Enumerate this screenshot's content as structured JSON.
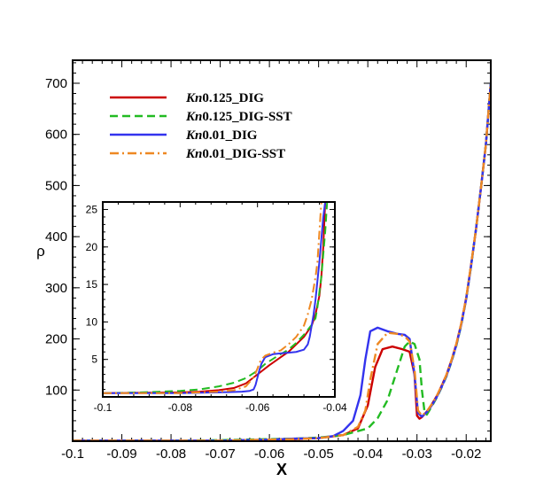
{
  "chart_data": [
    {
      "type": "line",
      "title": "",
      "xlabel": "X",
      "ylabel": "ρ",
      "xlim": [
        -0.1,
        -0.015
      ],
      "ylim": [
        0,
        745
      ],
      "xticks": [
        -0.1,
        -0.09,
        -0.08,
        -0.07,
        -0.06,
        -0.05,
        -0.04,
        -0.03,
        -0.02
      ],
      "xtick_labels": [
        "-0.1",
        "-0.09",
        "-0.08",
        "-0.07",
        "-0.06",
        "-0.05",
        "-0.04",
        "-0.03",
        "-0.02"
      ],
      "yticks": [
        100,
        200,
        300,
        400,
        500,
        600,
        700
      ],
      "ytick_labels": [
        "100",
        "200",
        "300",
        "400",
        "500",
        "600",
        "700"
      ],
      "legend_position": "top-left",
      "series": [
        {
          "name": "Kn0.125_DIG",
          "legend_prefix": "Kn",
          "legend_suffix": "0.125_DIG",
          "color": "#cc0000",
          "dash": "solid",
          "x": [
            -0.1,
            -0.08,
            -0.07,
            -0.065,
            -0.06,
            -0.055,
            -0.05,
            -0.045,
            -0.042,
            -0.04,
            -0.0385,
            -0.037,
            -0.035,
            -0.033,
            -0.0315,
            -0.0305,
            -0.03,
            -0.0295,
            -0.029,
            -0.028,
            -0.027,
            -0.026,
            -0.025,
            -0.024,
            -0.023,
            -0.022,
            -0.021,
            -0.02,
            -0.019,
            -0.018,
            -0.017,
            -0.016,
            -0.0155,
            -0.015
          ],
          "y": [
            1,
            1,
            1,
            2,
            3,
            4,
            6,
            12,
            25,
            70,
            145,
            180,
            185,
            180,
            175,
            130,
            50,
            44,
            47,
            58,
            72,
            88,
            108,
            130,
            158,
            190,
            230,
            280,
            345,
            415,
            495,
            580,
            640,
            700
          ]
        },
        {
          "name": "Kn0.125_DIG-SST",
          "legend_prefix": "Kn",
          "legend_suffix": "0.125_DIG-SST",
          "color": "#22bb22",
          "dash": "dashed",
          "x": [
            -0.1,
            -0.08,
            -0.07,
            -0.065,
            -0.06,
            -0.055,
            -0.05,
            -0.045,
            -0.04,
            -0.038,
            -0.036,
            -0.034,
            -0.0325,
            -0.0315,
            -0.0305,
            -0.0295,
            -0.029,
            -0.0285,
            -0.028,
            -0.027,
            -0.026,
            -0.025,
            -0.024,
            -0.023,
            -0.022,
            -0.021,
            -0.02,
            -0.019,
            -0.018,
            -0.017,
            -0.016,
            -0.0155,
            -0.015
          ],
          "y": [
            1,
            1,
            2,
            3,
            4,
            5,
            7,
            12,
            25,
            45,
            80,
            140,
            185,
            195,
            190,
            160,
            100,
            60,
            52,
            68,
            85,
            105,
            127,
            155,
            187,
            227,
            278,
            343,
            415,
            495,
            580,
            640,
            700
          ]
        },
        {
          "name": "Kn0.01_DIG",
          "legend_prefix": "Kn",
          "legend_suffix": "0.01_DIG",
          "color": "#3333ee",
          "dash": "solid",
          "x": [
            -0.1,
            -0.08,
            -0.07,
            -0.065,
            -0.06,
            -0.055,
            -0.05,
            -0.047,
            -0.045,
            -0.043,
            -0.0415,
            -0.0405,
            -0.0395,
            -0.038,
            -0.036,
            -0.034,
            -0.0325,
            -0.0315,
            -0.0305,
            -0.0298,
            -0.029,
            -0.028,
            -0.027,
            -0.026,
            -0.025,
            -0.024,
            -0.023,
            -0.022,
            -0.021,
            -0.02,
            -0.019,
            -0.018,
            -0.017,
            -0.016,
            -0.0155,
            -0.015
          ],
          "y": [
            1,
            1,
            1,
            2,
            3,
            5,
            6,
            10,
            20,
            40,
            90,
            160,
            215,
            222,
            215,
            210,
            208,
            200,
            130,
            55,
            48,
            57,
            70,
            86,
            106,
            128,
            156,
            188,
            228,
            278,
            343,
            415,
            495,
            580,
            640,
            700
          ]
        },
        {
          "name": "Kn0.01_DIG-SST",
          "legend_prefix": "Kn",
          "legend_suffix": "0.01_DIG-SST",
          "color": "#ee8822",
          "dash": "dashdot",
          "x": [
            -0.1,
            -0.08,
            -0.07,
            -0.065,
            -0.06,
            -0.055,
            -0.05,
            -0.045,
            -0.042,
            -0.0405,
            -0.0395,
            -0.038,
            -0.036,
            -0.034,
            -0.0325,
            -0.0315,
            -0.0305,
            -0.0298,
            -0.029,
            -0.028,
            -0.027,
            -0.026,
            -0.025,
            -0.024,
            -0.023,
            -0.022,
            -0.021,
            -0.02,
            -0.019,
            -0.018,
            -0.017,
            -0.016,
            -0.0155,
            -0.015
          ],
          "y": [
            1,
            1,
            1,
            2,
            3,
            4,
            6,
            12,
            28,
            60,
            120,
            190,
            212,
            210,
            205,
            195,
            140,
            60,
            50,
            58,
            72,
            88,
            108,
            130,
            158,
            190,
            230,
            280,
            345,
            415,
            495,
            580,
            640,
            700
          ]
        }
      ]
    },
    {
      "type": "line",
      "title": "",
      "xlabel": "",
      "ylabel": "",
      "xlim": [
        -0.1,
        -0.04
      ],
      "ylim": [
        0,
        26
      ],
      "xticks": [
        -0.1,
        -0.08,
        -0.06,
        -0.04
      ],
      "xtick_labels": [
        "-0.1",
        "-0.08",
        "-0.06",
        "-0.04"
      ],
      "yticks": [
        5,
        10,
        15,
        20,
        25
      ],
      "ytick_labels": [
        "5",
        "10",
        "15",
        "20",
        "25"
      ],
      "series": [
        {
          "color": "#cc0000",
          "dash": "solid",
          "x": [
            -0.1,
            -0.08,
            -0.075,
            -0.07,
            -0.066,
            -0.063,
            -0.06,
            -0.057,
            -0.054,
            -0.052,
            -0.05,
            -0.048,
            -0.046,
            -0.045,
            -0.044,
            -0.0435,
            -0.043,
            -0.0425
          ],
          "y": [
            0.5,
            0.6,
            0.7,
            0.9,
            1.2,
            1.8,
            3.0,
            4.2,
            5.3,
            6.0,
            7.0,
            8.0,
            9.5,
            11,
            13.5,
            16,
            20,
            26
          ]
        },
        {
          "color": "#22bb22",
          "dash": "dashed",
          "x": [
            -0.1,
            -0.09,
            -0.08,
            -0.075,
            -0.07,
            -0.066,
            -0.063,
            -0.06,
            -0.058,
            -0.055,
            -0.052,
            -0.05,
            -0.048,
            -0.046,
            -0.045,
            -0.0445,
            -0.044,
            -0.0435,
            -0.043,
            -0.0425,
            -0.042
          ],
          "y": [
            0.5,
            0.6,
            0.8,
            1.0,
            1.4,
            1.9,
            2.5,
            3.5,
            4.4,
            5.4,
            6.3,
            7.2,
            8.3,
            9.6,
            10.5,
            12,
            14,
            16,
            19,
            22,
            26
          ]
        },
        {
          "color": "#3333ee",
          "dash": "solid",
          "x": [
            -0.1,
            -0.08,
            -0.07,
            -0.064,
            -0.062,
            -0.061,
            -0.0605,
            -0.06,
            -0.0595,
            -0.059,
            -0.058,
            -0.056,
            -0.054,
            -0.052,
            -0.05,
            -0.048,
            -0.047,
            -0.0465,
            -0.046,
            -0.0455,
            -0.045,
            -0.0445,
            -0.044,
            -0.0435,
            -0.043,
            -0.0425
          ],
          "y": [
            0.5,
            0.5,
            0.6,
            0.7,
            0.8,
            1.0,
            1.6,
            2.6,
            3.6,
            4.4,
            5.3,
            5.7,
            5.8,
            5.9,
            6.0,
            6.3,
            7.0,
            8.0,
            9.5,
            11,
            13,
            15.5,
            18,
            21,
            24,
            26
          ]
        },
        {
          "color": "#ee8822",
          "dash": "dashdot",
          "x": [
            -0.1,
            -0.08,
            -0.07,
            -0.066,
            -0.063,
            -0.061,
            -0.06,
            -0.0595,
            -0.059,
            -0.058,
            -0.056,
            -0.054,
            -0.052,
            -0.05,
            -0.048,
            -0.047,
            -0.046,
            -0.045,
            -0.0445,
            -0.044,
            -0.0435
          ],
          "y": [
            0.5,
            0.5,
            0.7,
            0.9,
            1.4,
            2.6,
            3.8,
            4.5,
            5.0,
            5.5,
            5.9,
            6.2,
            7.0,
            8.0,
            9.5,
            11,
            13,
            16,
            18,
            22,
            26
          ]
        }
      ]
    }
  ]
}
